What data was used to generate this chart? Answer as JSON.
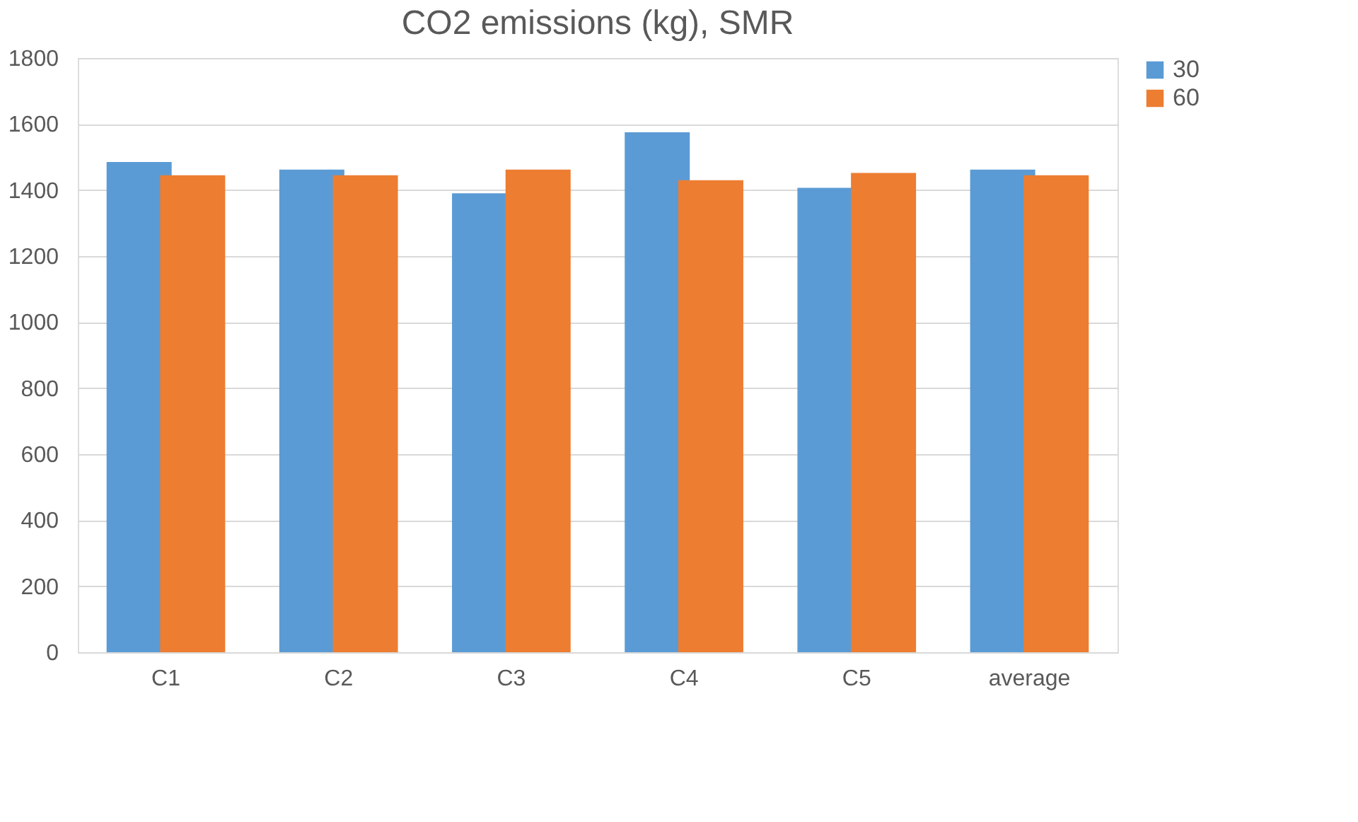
{
  "chart_data": {
    "type": "bar",
    "title": "CO2 emissions (kg), SMR",
    "categories": [
      "C1",
      "C2",
      "C3",
      "C4",
      "C5",
      "average"
    ],
    "series": [
      {
        "name": "30",
        "color": "#5b9bd5",
        "values": [
          1485,
          1462,
          1390,
          1575,
          1407,
          1462
        ]
      },
      {
        "name": "60",
        "color": "#ed7d31",
        "values": [
          1445,
          1445,
          1462,
          1430,
          1452,
          1445
        ]
      }
    ],
    "ylim": [
      0,
      1800
    ],
    "yticks": [
      0,
      200,
      400,
      600,
      800,
      1000,
      1200,
      1400,
      1600,
      1800
    ],
    "grid": "y",
    "legend": "right"
  }
}
